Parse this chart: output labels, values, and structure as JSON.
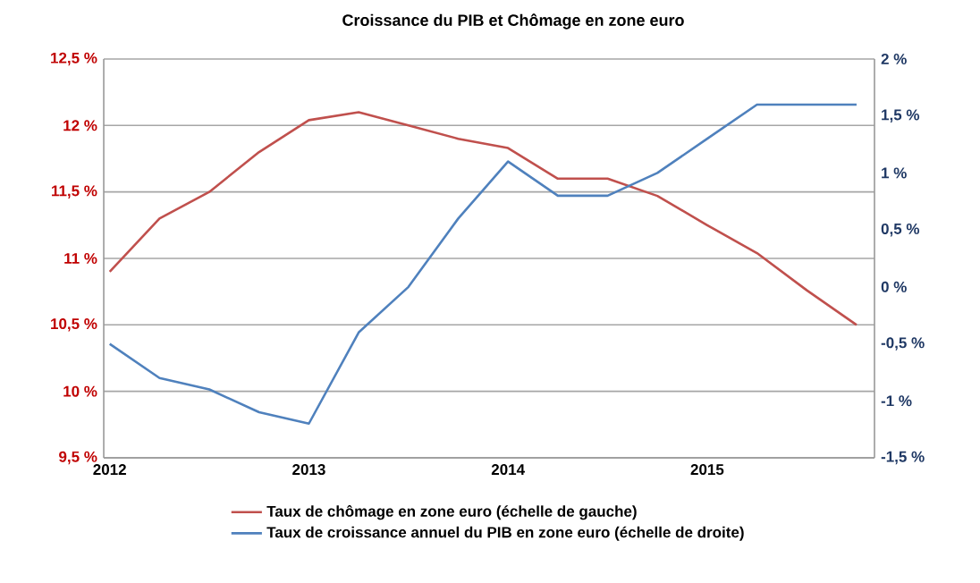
{
  "chart_data": {
    "type": "line",
    "title": "Croissance du PIB et Chômage en zone euro",
    "x": [
      2012.0,
      2012.25,
      2012.5,
      2012.75,
      2013.0,
      2013.25,
      2013.5,
      2013.75,
      2014.0,
      2014.25,
      2014.5,
      2014.75,
      2015.0,
      2015.25,
      2015.5,
      2015.75
    ],
    "xlim": [
      2011.97,
      2015.84
    ],
    "xticks": [
      2012,
      2013,
      2014,
      2015
    ],
    "ylim": [
      9.5,
      12.5
    ],
    "yticks": [
      {
        "value": 9.5,
        "label": "9,5 %"
      },
      {
        "value": 10,
        "label": "10 %"
      },
      {
        "value": 10.5,
        "label": "10,5 %"
      },
      {
        "value": 11,
        "label": "11 %"
      },
      {
        "value": 11.5,
        "label": "11,5 %"
      },
      {
        "value": 12,
        "label": "12 %"
      },
      {
        "value": 12.5,
        "label": "12,5 %"
      }
    ],
    "y2lim": [
      -1.5,
      2
    ],
    "y2ticks": [
      {
        "value": -1.5,
        "label": "-1,5 %"
      },
      {
        "value": -1,
        "label": "-1 %"
      },
      {
        "value": -0.5,
        "label": "-0,5 %"
      },
      {
        "value": 0,
        "label": "0 %"
      },
      {
        "value": 0.5,
        "label": "0,5 %"
      },
      {
        "value": 1,
        "label": "1 %"
      },
      {
        "value": 1.5,
        "label": "1,5 %"
      },
      {
        "value": 2,
        "label": "2 %"
      }
    ],
    "grid": "y",
    "legend": "bottom",
    "series": [
      {
        "name": "Taux de chômage en zone euro (échelle de gauche)",
        "color": "#c0504d",
        "values": [
          10.9,
          11.3,
          11.5,
          11.8,
          12.04,
          12.1,
          12.0,
          11.9,
          11.83,
          11.6,
          11.6,
          11.47,
          11.25,
          11.04,
          10.76,
          10.5
        ]
      },
      {
        "name": "Taux de croissance annuel du PIB en zone euro (échelle de droite)",
        "color": "#4f81bd",
        "axis": "y2",
        "values": [
          -0.5,
          -0.8,
          -0.9,
          -1.1,
          -1.2,
          -0.4,
          0.0,
          0.6,
          1.1,
          0.8,
          0.8,
          1.0,
          1.3,
          1.6,
          1.6,
          1.6
        ]
      }
    ]
  }
}
